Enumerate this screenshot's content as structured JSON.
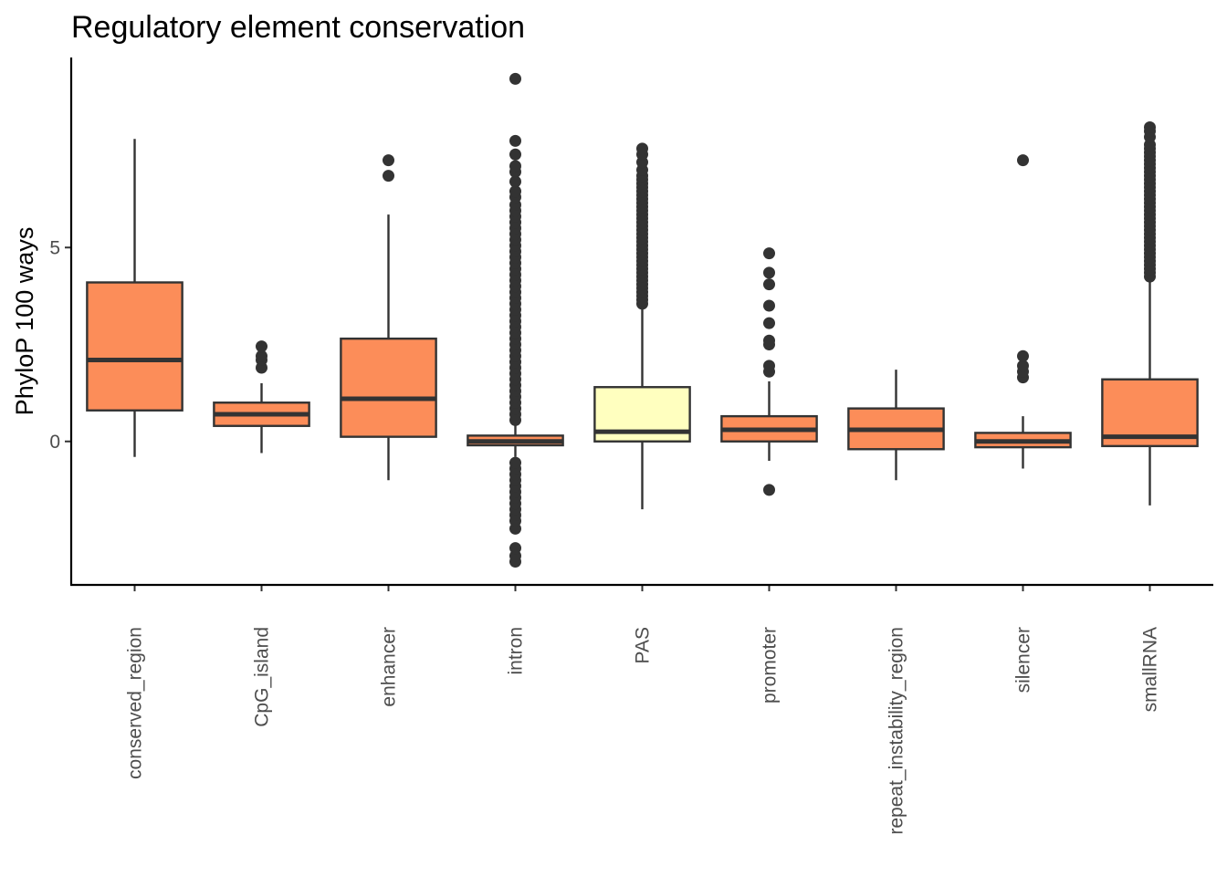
{
  "chart_data": {
    "type": "boxplot",
    "title": "Regulatory element conservation",
    "xlabel": "",
    "ylabel": "PhyloP 100 ways",
    "ylim": [
      -3.7,
      9.9
    ],
    "y_ticks": [
      0,
      5
    ],
    "legend": "none",
    "grid": false,
    "categories": [
      "conserved_region",
      "CpG_island",
      "enhancer",
      "intron",
      "PAS",
      "promoter",
      "repeat_instability_region",
      "silencer",
      "smallRNA"
    ],
    "colors": {
      "default_fill": "#fc8d59",
      "highlight_fill": "#ffffbf",
      "line": "#333333"
    },
    "boxes": [
      {
        "category": "conserved_region",
        "q1": 0.8,
        "median": 2.1,
        "q3": 4.1,
        "whisker_low": -0.4,
        "whisker_high": 7.8,
        "fill": "#fc8d59",
        "outliers": []
      },
      {
        "category": "CpG_island",
        "q1": 0.4,
        "median": 0.7,
        "q3": 1.0,
        "whisker_low": -0.3,
        "whisker_high": 1.5,
        "fill": "#fc8d59",
        "outliers": [
          1.9,
          2.1,
          2.2,
          2.45
        ]
      },
      {
        "category": "enhancer",
        "q1": 0.12,
        "median": 1.1,
        "q3": 2.65,
        "whisker_low": -1.0,
        "whisker_high": 5.85,
        "fill": "#fc8d59",
        "outliers": [
          6.85,
          7.25
        ]
      },
      {
        "category": "intron",
        "q1": -0.1,
        "median": 0.0,
        "q3": 0.15,
        "whisker_low": -0.4,
        "whisker_high": 0.5,
        "fill": "#fc8d59",
        "outliers": [
          -3.1,
          -2.95,
          -2.75,
          -2.25,
          -2.05,
          -1.9,
          -1.75,
          -1.6,
          -1.45,
          -1.3,
          -1.15,
          -1.0,
          -0.85,
          -0.7,
          -0.55,
          0.55,
          0.7,
          0.85,
          1.0,
          1.15,
          1.3,
          1.45,
          1.6,
          1.75,
          1.9,
          2.05,
          2.2,
          2.35,
          2.5,
          2.65,
          2.8,
          2.95,
          3.1,
          3.25,
          3.4,
          3.55,
          3.7,
          3.85,
          4.0,
          4.15,
          4.3,
          4.45,
          4.6,
          4.75,
          4.9,
          5.05,
          5.2,
          5.35,
          5.5,
          5.65,
          5.8,
          5.95,
          6.1,
          6.3,
          6.45,
          6.7,
          6.95,
          7.1,
          7.4,
          7.75,
          9.35
        ]
      },
      {
        "category": "PAS",
        "q1": 0.0,
        "median": 0.25,
        "q3": 1.4,
        "whisker_low": -1.75,
        "whisker_high": 3.5,
        "fill": "#ffffbf",
        "outliers": [
          3.55,
          3.65,
          3.75,
          3.85,
          3.95,
          4.05,
          4.15,
          4.25,
          4.35,
          4.45,
          4.55,
          4.65,
          4.75,
          4.85,
          4.95,
          5.05,
          5.15,
          5.25,
          5.35,
          5.45,
          5.55,
          5.65,
          5.75,
          5.85,
          5.95,
          6.05,
          6.15,
          6.25,
          6.35,
          6.45,
          6.55,
          6.65,
          6.75,
          6.85,
          7.0,
          7.2,
          7.4,
          7.55
        ]
      },
      {
        "category": "promoter",
        "q1": 0.0,
        "median": 0.3,
        "q3": 0.65,
        "whisker_low": -0.5,
        "whisker_high": 1.55,
        "fill": "#fc8d59",
        "outliers": [
          -1.25,
          1.8,
          1.95,
          2.5,
          2.6,
          3.05,
          3.5,
          4.05,
          4.35,
          4.85
        ]
      },
      {
        "category": "repeat_instability_region",
        "q1": -0.2,
        "median": 0.3,
        "q3": 0.85,
        "whisker_low": -1.0,
        "whisker_high": 1.85,
        "fill": "#fc8d59",
        "outliers": []
      },
      {
        "category": "silencer",
        "q1": -0.15,
        "median": 0.0,
        "q3": 0.22,
        "whisker_low": -0.7,
        "whisker_high": 0.65,
        "fill": "#fc8d59",
        "outliers": [
          1.65,
          1.8,
          1.95,
          2.2,
          7.25
        ]
      },
      {
        "category": "smallRNA",
        "q1": -0.12,
        "median": 0.12,
        "q3": 1.6,
        "whisker_low": -1.65,
        "whisker_high": 4.2,
        "fill": "#fc8d59",
        "outliers": [
          4.25,
          4.35,
          4.45,
          4.55,
          4.65,
          4.75,
          4.85,
          4.95,
          5.05,
          5.15,
          5.25,
          5.35,
          5.45,
          5.55,
          5.65,
          5.75,
          5.85,
          5.95,
          6.05,
          6.15,
          6.25,
          6.35,
          6.45,
          6.55,
          6.65,
          6.75,
          6.85,
          6.95,
          7.05,
          7.15,
          7.25,
          7.35,
          7.45,
          7.55,
          7.65,
          7.85,
          8.0,
          8.1
        ]
      }
    ]
  }
}
